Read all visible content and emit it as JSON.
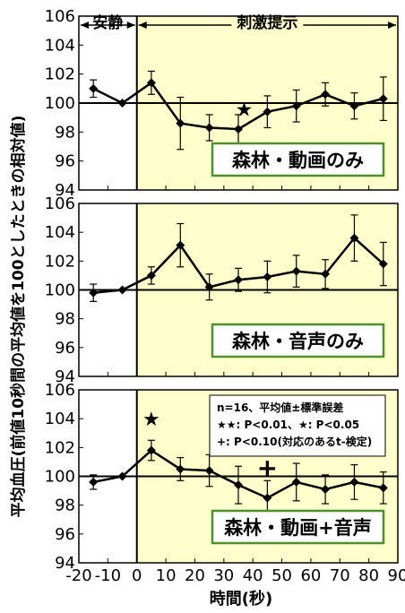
{
  "chart_data": {
    "type": "line",
    "xlabel": "時間(秒)",
    "ylabel": "平均血圧(前値10秒間の平均値を100としたときの相対値)",
    "xlim": [
      -20,
      90
    ],
    "ylim": [
      94,
      106
    ],
    "xticks": [
      -20,
      -10,
      0,
      10,
      20,
      30,
      40,
      50,
      60,
      70,
      80,
      90
    ],
    "xtick_labels": [
      "-20",
      "-10",
      "0",
      "10",
      "20",
      "30",
      "40",
      "50",
      "60",
      "70",
      "80",
      "90"
    ],
    "yticks": [
      94,
      96,
      98,
      100,
      102,
      104,
      106
    ],
    "ytick_labels": [
      "94",
      "96",
      "98",
      "100",
      "102",
      "104",
      "106"
    ],
    "reference_line": 100,
    "stimulus_onset": 0,
    "rest_label": "安静",
    "stim_label": "刺激提示",
    "colors": {
      "stim_bg": "#ffffcc",
      "line": "#000000",
      "box_bg": "#ffffff",
      "box_border": "#4e8f2e"
    },
    "x": [
      -15,
      -5,
      5,
      15,
      25,
      35,
      45,
      55,
      65,
      75,
      85
    ],
    "legend": {
      "lines": [
        "n=16、平均値±標準誤差",
        "★★: P<0.01、★: P<0.05",
        "+: P<0.10(対応のあるt-検定)"
      ]
    },
    "panels": [
      {
        "label": "森林・動画のみ",
        "values": [
          101.0,
          100.0,
          101.4,
          98.6,
          98.3,
          98.2,
          99.4,
          99.8,
          100.6,
          99.8,
          100.3
        ],
        "errors": [
          0.6,
          0.0,
          0.8,
          1.8,
          0.9,
          1.0,
          1.1,
          1.1,
          0.8,
          0.9,
          1.5
        ],
        "markers": [
          {
            "x": 37,
            "y": 99.6,
            "symbol": "★"
          }
        ]
      },
      {
        "label": "森林・音声のみ",
        "values": [
          99.8,
          100.0,
          101.0,
          103.1,
          100.2,
          100.7,
          100.9,
          101.3,
          101.1,
          103.6,
          101.8
        ],
        "errors": [
          0.6,
          0.0,
          0.6,
          1.5,
          0.9,
          0.8,
          1.1,
          1.1,
          1.0,
          1.6,
          1.5
        ],
        "markers": []
      },
      {
        "label": "森林・動画+音声",
        "values": [
          99.6,
          100.0,
          101.8,
          100.5,
          100.4,
          99.4,
          98.5,
          99.6,
          99.1,
          99.6,
          99.2
        ],
        "errors": [
          0.5,
          0.0,
          0.7,
          0.8,
          1.1,
          1.3,
          1.2,
          1.3,
          1.0,
          1.2,
          1.1
        ],
        "markers": [
          {
            "x": 5,
            "y": 104.0,
            "symbol": "★"
          },
          {
            "x": 45,
            "y": 100.5,
            "symbol": "+"
          }
        ]
      }
    ]
  }
}
